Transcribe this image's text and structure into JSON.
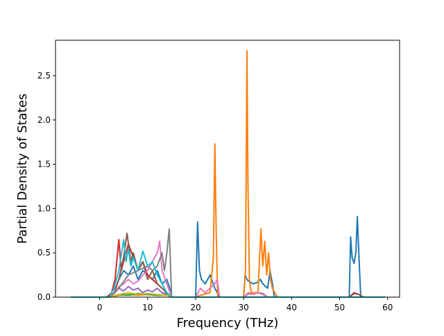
{
  "chart_data": {
    "type": "line",
    "title": "",
    "xlabel": "Frequency (THz)",
    "ylabel": "Partial Density of States",
    "xlim": [
      -9.2,
      62.5
    ],
    "ylim": [
      0,
      2.9
    ],
    "xticks": [
      0,
      10,
      20,
      30,
      40,
      50,
      60
    ],
    "yticks": [
      0.0,
      0.5,
      1.0,
      1.5,
      2.0,
      2.5
    ],
    "ytick_labels": [
      "0.0",
      "0.5",
      "1.0",
      "1.5",
      "2.0",
      "2.5"
    ],
    "grid": false,
    "legend": "none",
    "series": [
      {
        "color": "#1f77b4",
        "x": [
          -6,
          0,
          2,
          3,
          4,
          5,
          6,
          7,
          8,
          9,
          10,
          11,
          12,
          13,
          14,
          14.6,
          15,
          20,
          20.4,
          20.8,
          21.2,
          22,
          23,
          24,
          24.5,
          25,
          30,
          30.3,
          30.7,
          31,
          32,
          33,
          33.5,
          34,
          35,
          35.5,
          36,
          36.4,
          37,
          52,
          52.3,
          52.6,
          53,
          53.4,
          53.7,
          54,
          54.4,
          55,
          59.5
        ],
        "y": [
          0,
          0,
          0,
          0.05,
          0.2,
          0.3,
          0.25,
          0.35,
          0.2,
          0.3,
          0.25,
          0.2,
          0.3,
          0.15,
          0.2,
          0.1,
          0,
          0,
          0.85,
          0.3,
          0.2,
          0.15,
          0.25,
          0.1,
          0.05,
          0,
          0,
          0.25,
          0.2,
          0.18,
          0.15,
          0.17,
          0.2,
          0.15,
          0.1,
          0.3,
          0.15,
          0,
          0,
          0,
          0.68,
          0.45,
          0.38,
          0.5,
          0.91,
          0.5,
          0,
          0,
          0
        ]
      },
      {
        "color": "#ff7f0e",
        "x": [
          -6,
          2,
          4,
          6,
          8,
          10,
          12,
          14,
          15,
          20,
          21,
          23,
          23.7,
          24,
          24.3,
          24.6,
          30,
          30.4,
          30.7,
          30.9,
          31.2,
          31.6,
          33,
          33.6,
          34,
          34.4,
          34.8,
          35.2,
          35.6,
          36,
          37,
          59.5
        ],
        "y": [
          0,
          0,
          0.02,
          0.03,
          0.02,
          0.03,
          0.02,
          0.02,
          0,
          0,
          0.02,
          0.05,
          0.45,
          1.73,
          0.7,
          0,
          0,
          0.3,
          2.78,
          1.3,
          0.2,
          0.05,
          0.05,
          0.77,
          0.35,
          0.63,
          0.25,
          0.5,
          0.2,
          0.1,
          0,
          0
        ]
      },
      {
        "color": "#2ca02c",
        "x": [
          -6,
          2,
          4,
          6,
          8,
          10,
          12,
          14,
          15,
          59.5
        ],
        "y": [
          0,
          0,
          0.03,
          0.02,
          0.04,
          0.03,
          0.02,
          0.03,
          0,
          0
        ]
      },
      {
        "color": "#d62728",
        "x": [
          -6,
          1.5,
          2.5,
          3.2,
          4,
          4.5,
          5,
          6,
          7,
          8,
          9,
          10,
          11,
          12,
          13,
          14,
          15,
          52,
          53,
          54,
          55,
          59.5
        ],
        "y": [
          0,
          0,
          0.05,
          0.2,
          0.65,
          0.3,
          0.4,
          0.6,
          0.45,
          0.3,
          0.4,
          0.25,
          0.2,
          0.15,
          0.1,
          0.05,
          0,
          0,
          0.05,
          0.03,
          0,
          0
        ]
      },
      {
        "color": "#9467bd",
        "x": [
          -6,
          2,
          3,
          4,
          5,
          6,
          7,
          8,
          9,
          10,
          11,
          12,
          13,
          14,
          15,
          59.5
        ],
        "y": [
          0,
          0,
          0.04,
          0.1,
          0.07,
          0.12,
          0.08,
          0.1,
          0.05,
          0.08,
          0.06,
          0.1,
          0.05,
          0.04,
          0,
          0
        ]
      },
      {
        "color": "#8c564b",
        "x": [
          -6,
          2,
          3,
          4,
          5,
          5.7,
          6.5,
          7,
          8,
          9,
          10,
          11,
          12,
          13,
          14,
          15,
          30,
          31,
          32,
          33,
          34,
          35,
          52,
          53,
          54,
          55,
          59.5
        ],
        "y": [
          0,
          0,
          0.05,
          0.2,
          0.45,
          0.72,
          0.4,
          0.5,
          0.3,
          0.4,
          0.2,
          0.3,
          0.15,
          0.1,
          0.05,
          0,
          0,
          0.04,
          0.03,
          0.05,
          0.04,
          0,
          0,
          0.04,
          0.03,
          0,
          0
        ]
      },
      {
        "color": "#e377c2",
        "x": [
          -6,
          2,
          3,
          4,
          5,
          6,
          7,
          8,
          9,
          10,
          11,
          12,
          12.5,
          13,
          14,
          15,
          20,
          21,
          22,
          23,
          24,
          24.5,
          25,
          30,
          31,
          32,
          33,
          34,
          35,
          59.5
        ],
        "y": [
          0,
          0,
          0.05,
          0.12,
          0.15,
          0.2,
          0.15,
          0.18,
          0.25,
          0.3,
          0.4,
          0.5,
          0.63,
          0.3,
          0.15,
          0,
          0,
          0.1,
          0.05,
          0.1,
          0.15,
          0.2,
          0,
          0,
          0.05,
          0.03,
          0.05,
          0.03,
          0,
          0
        ]
      },
      {
        "color": "#7f7f7f",
        "x": [
          -6,
          2,
          4,
          6,
          8,
          10,
          11,
          12,
          13,
          13.5,
          14,
          14.5,
          15,
          59.5
        ],
        "y": [
          0,
          0,
          0.1,
          0.25,
          0.3,
          0.35,
          0.3,
          0.35,
          0.5,
          0.3,
          0.5,
          0.77,
          0,
          0
        ]
      },
      {
        "color": "#bcbd22",
        "x": [
          -6,
          2,
          4,
          6,
          8,
          10,
          12,
          14,
          15,
          59.5
        ],
        "y": [
          0,
          0,
          0.03,
          0.05,
          0.03,
          0.04,
          0.03,
          0.02,
          0,
          0
        ]
      },
      {
        "color": "#17becf",
        "x": [
          -6,
          2,
          3,
          4,
          5,
          5.5,
          6,
          6.5,
          7,
          8,
          9,
          10,
          11,
          12,
          13,
          14,
          15,
          59.5
        ],
        "y": [
          0,
          0,
          0.1,
          0.3,
          0.65,
          0.4,
          0.55,
          0.35,
          0.45,
          0.3,
          0.52,
          0.35,
          0.4,
          0.25,
          0.15,
          0.05,
          0,
          0
        ]
      }
    ]
  }
}
